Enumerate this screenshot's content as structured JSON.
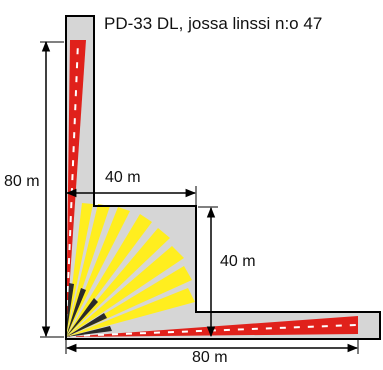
{
  "title": "PD-33 DL, jossa linssi n:o 47",
  "dimensions": {
    "left_vertical": "80 m",
    "top_horizontal": "40 m",
    "right_vertical": "40 m",
    "bottom_horizontal": "80 m"
  },
  "colors": {
    "floor": "#d6d6d6",
    "outline": "#000000",
    "long_range_beam": "#e0211b",
    "wide_angle_beam": "#ffee1f",
    "near_zone_beam": "#2a2a2a",
    "dimension_line": "#000000"
  }
}
